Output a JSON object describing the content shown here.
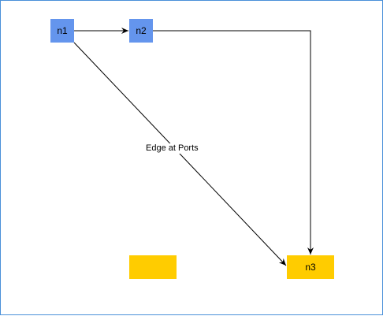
{
  "nodes": {
    "n1": {
      "label": "n1",
      "fill": "#6495ed"
    },
    "n2": {
      "label": "n2",
      "fill": "#6495ed"
    },
    "n3": {
      "label": "n3",
      "fill": "#ffcc00"
    },
    "unlabeled": {
      "label": "",
      "fill": "#ffcc00"
    }
  },
  "edges": [
    {
      "from": "n1",
      "to": "n2",
      "label": ""
    },
    {
      "from": "n2",
      "to": "n3",
      "label": ""
    },
    {
      "from": "n1",
      "to": "n3",
      "label": "Edge at Ports"
    }
  ],
  "colors": {
    "border": "#4a90d9",
    "edge": "#000000"
  }
}
